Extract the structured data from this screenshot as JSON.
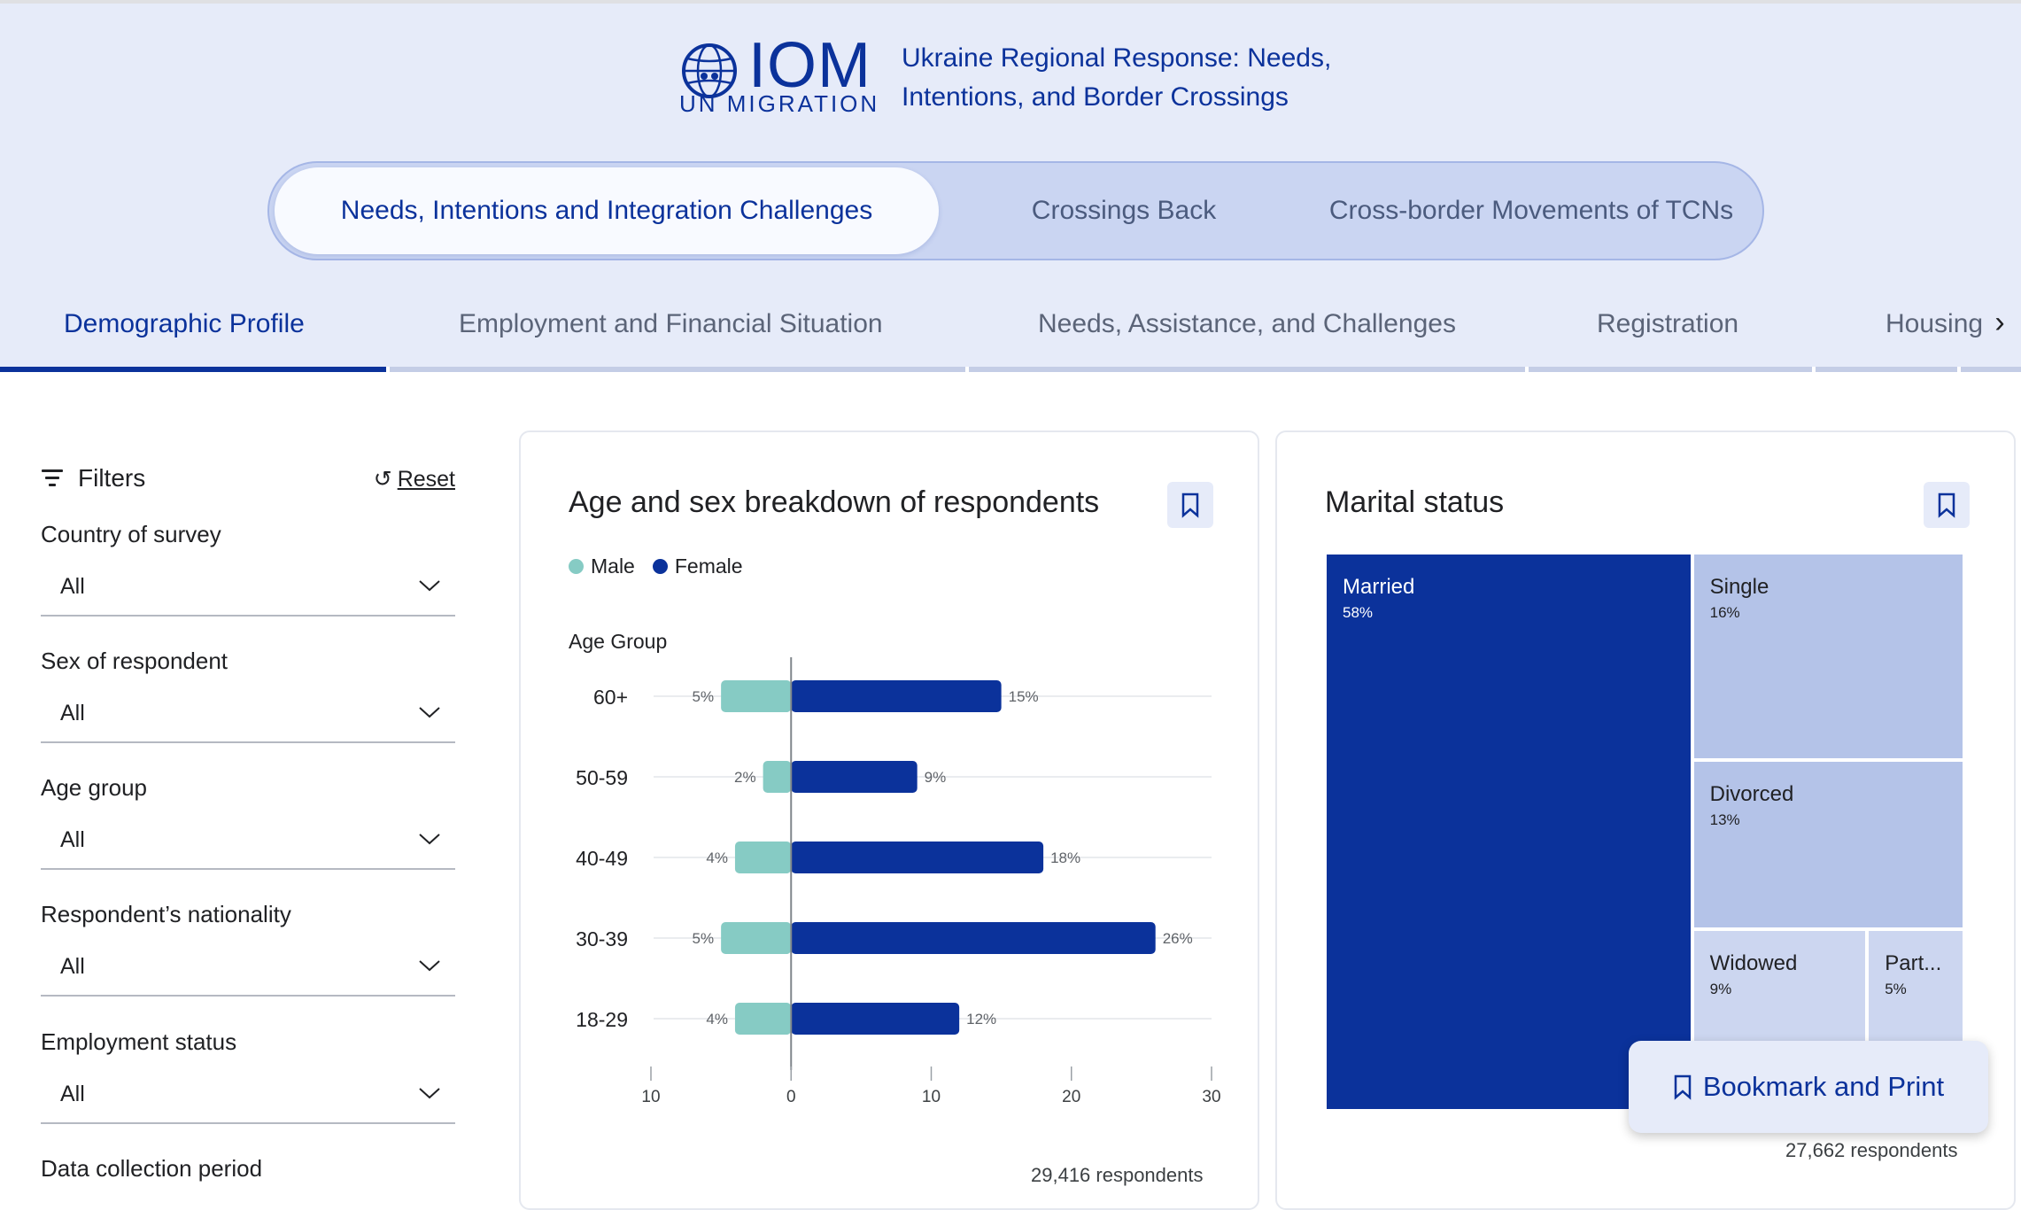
{
  "header": {
    "logo_main": "IOM",
    "logo_sub": "UN MIGRATION",
    "title_line1": "Ukraine Regional Response: Needs,",
    "title_line2": "Intentions, and Border Crossings"
  },
  "main_tabs": [
    {
      "label": "Needs, Intentions and Integration Challenges",
      "active": true
    },
    {
      "label": "Crossings Back",
      "active": false
    },
    {
      "label": "Cross-border Movements of TCNs",
      "active": false
    }
  ],
  "sub_tabs": [
    {
      "label": "Demographic Profile",
      "active": true
    },
    {
      "label": "Employment and Financial Situation",
      "active": false
    },
    {
      "label": "Needs, Assistance, and Challenges",
      "active": false
    },
    {
      "label": "Registration",
      "active": false
    },
    {
      "label": "Housing",
      "active": false
    }
  ],
  "filters": {
    "title": "Filters",
    "reset_label": "Reset",
    "groups": [
      {
        "label": "Country of survey",
        "value": "All"
      },
      {
        "label": "Sex of respondent",
        "value": "All"
      },
      {
        "label": "Age group",
        "value": "All"
      },
      {
        "label": "Respondent’s nationality",
        "value": "All"
      },
      {
        "label": "Employment status",
        "value": "All"
      },
      {
        "label": "Data collection period",
        "value": ""
      }
    ]
  },
  "age_card": {
    "title": "Age and sex breakdown of respondents",
    "respondents": "29,416 respondents"
  },
  "marital_card": {
    "title": "Marital status",
    "respondents": "27,662 respondents"
  },
  "fab": {
    "label": "Bookmark and Print"
  },
  "colors": {
    "brand": "#0b329b",
    "male": "#86cbc4",
    "light_cell": "#b4c3e8",
    "pale_cell": "#ccd6f0"
  },
  "chart_data": [
    {
      "type": "bar",
      "orientation": "horizontal-diverging",
      "title": "Age and sex breakdown of respondents",
      "ylabel": "Age Group",
      "categories": [
        "60+",
        "50-59",
        "40-49",
        "30-39",
        "18-29"
      ],
      "series": [
        {
          "name": "Male",
          "values": [
            5,
            2,
            4,
            5,
            4
          ]
        },
        {
          "name": "Female",
          "values": [
            15,
            9,
            18,
            26,
            12
          ]
        }
      ],
      "xticks": [
        "10",
        "0",
        "10",
        "20",
        "30"
      ],
      "xlim": [
        -10,
        30
      ],
      "value_suffix": "%",
      "legend": "top-left",
      "grid": true
    },
    {
      "type": "treemap",
      "title": "Marital status",
      "items": [
        {
          "name": "Married",
          "value": 58,
          "label": "58%"
        },
        {
          "name": "Single",
          "value": 16,
          "label": "16%"
        },
        {
          "name": "Divorced",
          "value": 13,
          "label": "13%"
        },
        {
          "name": "Widowed",
          "value": 9,
          "label": "9%"
        },
        {
          "name": "Part...",
          "value": 5,
          "label": "5%"
        }
      ]
    }
  ]
}
